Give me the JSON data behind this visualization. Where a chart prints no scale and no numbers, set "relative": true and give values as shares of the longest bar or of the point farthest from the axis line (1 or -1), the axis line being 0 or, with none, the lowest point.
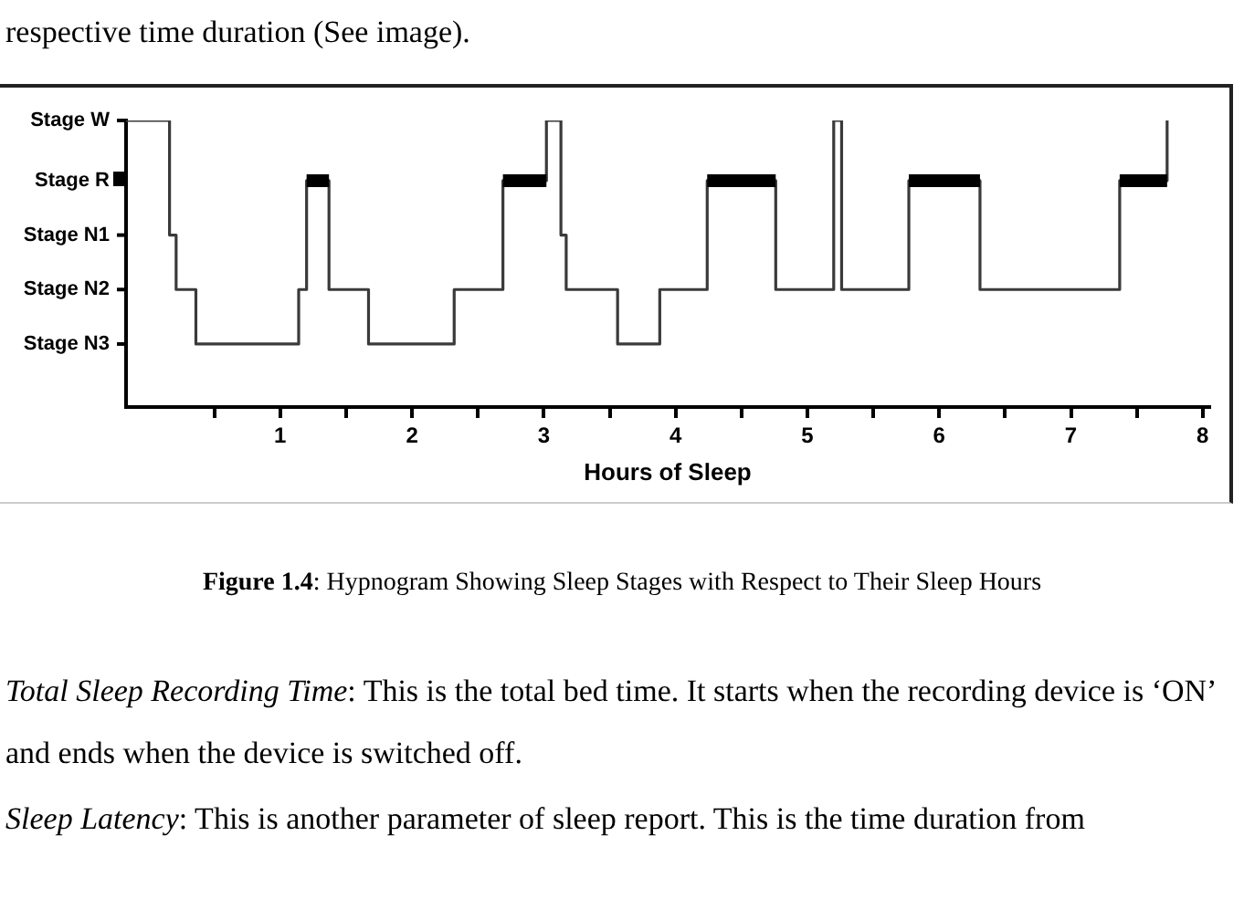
{
  "chart_data": {
    "type": "step",
    "xlabel": "Hours of Sleep",
    "xlim": [
      -0.17,
      8.05
    ],
    "xticks": [
      {
        "value": 0.5,
        "label": null
      },
      1,
      {
        "value": 1.5,
        "label": null
      },
      2,
      {
        "value": 2.5,
        "label": null
      },
      3,
      {
        "value": 3.5,
        "label": null
      },
      4,
      {
        "value": 4.5,
        "label": null
      },
      5,
      {
        "value": 5.5,
        "label": null
      },
      6,
      {
        "value": 6.5,
        "label": null
      },
      7,
      {
        "value": 7.5,
        "label": null
      },
      8
    ],
    "relative": true,
    "grid": false,
    "legend": false,
    "series": [
      {
        "color": "#3a3a3a",
        "x": [
          -0.17,
          0.16,
          0.21,
          0.36,
          1.14,
          1.2,
          1.37,
          1.67,
          2.32,
          2.69,
          3.02,
          3.13,
          3.17,
          3.56,
          3.88,
          4.24,
          4.76,
          5.2,
          5.26,
          5.77,
          6.31,
          7.37,
          7.73
        ],
        "values": [
          1,
          0.6,
          0.41,
          0.22,
          0.41,
          0.79,
          0.41,
          0.22,
          0.41,
          0.79,
          1,
          0.6,
          0.41,
          0.22,
          0.41,
          0.79,
          0.41,
          1,
          0.41,
          0.79,
          0.41,
          0.79,
          1
        ]
      },
      {
        "type": "line",
        "color": "#000000",
        "x": [
          1.2,
          1.37,
          2.0,
          2.69,
          3.02,
          3.5,
          4.24,
          4.76,
          5.3,
          5.77,
          6.31,
          7.0,
          7.37,
          7.73
        ],
        "values": [
          0.79,
          0.79,
          null,
          0.79,
          0.79,
          null,
          0.79,
          0.79,
          null,
          0.79,
          0.79,
          null,
          0.79,
          0.79
        ]
      }
    ],
    "annotations": [
      "Stage W",
      "Stage R",
      "Stage N1",
      "Stage N2",
      "Stage N3",
      "respective time duration (See image).",
      "Figure 1.4: Hypnogram Showing Sleep Stages with Respect to Their Sleep Hours",
      "Total Sleep Recording Time: This is the total bed time. It starts when the recording device is ‘ON’ and ends when the device is switched off.",
      "Sleep Latency: This is another parameter of sleep report. This is the time duration from"
    ]
  }
}
